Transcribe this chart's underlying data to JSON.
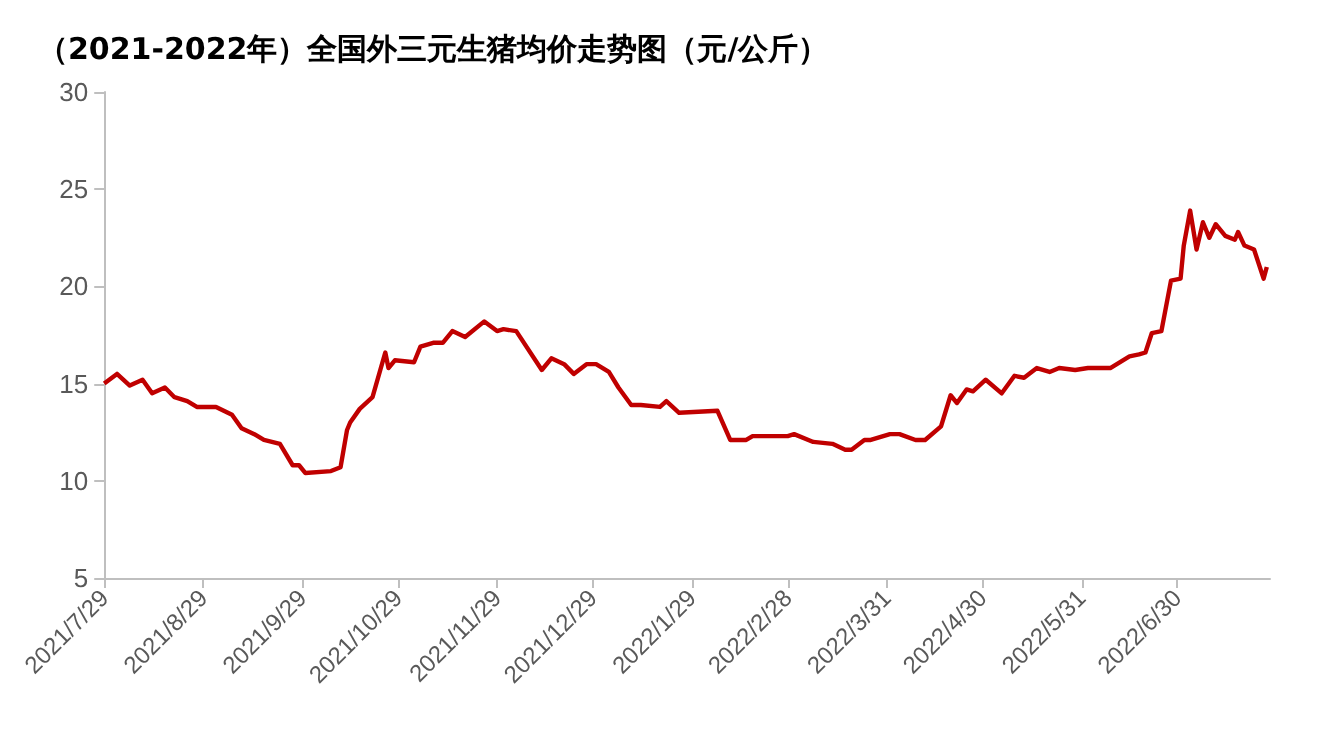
{
  "chart_data": {
    "type": "line",
    "title": "（2021-2022年）全国外三元生猪均价走势图（元/公斤）",
    "x": [
      "2021-07-29",
      "2021-08-02",
      "2021-08-06",
      "2021-08-10",
      "2021-08-13",
      "2021-08-17",
      "2021-08-20",
      "2021-08-24",
      "2021-08-27",
      "2021-09-02",
      "2021-09-07",
      "2021-09-10",
      "2021-09-14",
      "2021-09-17",
      "2021-09-22",
      "2021-09-26",
      "2021-09-28",
      "2021-09-30",
      "2021-10-08",
      "2021-10-11",
      "2021-10-13",
      "2021-10-14",
      "2021-10-17",
      "2021-10-21",
      "2021-10-25",
      "2021-10-26",
      "2021-10-28",
      "2021-11-03",
      "2021-11-05",
      "2021-11-09",
      "2021-11-12",
      "2021-11-15",
      "2021-11-19",
      "2021-11-25",
      "2021-11-29",
      "2021-12-01",
      "2021-12-05",
      "2021-12-13",
      "2021-12-16",
      "2021-12-20",
      "2021-12-23",
      "2021-12-27",
      "2021-12-30",
      "2022-01-03",
      "2022-01-06",
      "2022-01-10",
      "2022-01-13",
      "2022-01-19",
      "2022-01-21",
      "2022-01-25",
      "2022-02-06",
      "2022-02-10",
      "2022-02-15",
      "2022-02-17",
      "2022-02-28",
      "2022-03-02",
      "2022-03-08",
      "2022-03-14",
      "2022-03-18",
      "2022-03-20",
      "2022-03-24",
      "2022-03-26",
      "2022-04-01",
      "2022-04-04",
      "2022-04-09",
      "2022-04-12",
      "2022-04-17",
      "2022-04-20",
      "2022-04-22",
      "2022-04-25",
      "2022-04-27",
      "2022-05-01",
      "2022-05-06",
      "2022-05-10",
      "2022-05-13",
      "2022-05-17",
      "2022-05-21",
      "2022-05-24",
      "2022-05-29",
      "2022-06-02",
      "2022-06-09",
      "2022-06-15",
      "2022-06-18",
      "2022-06-20",
      "2022-06-22",
      "2022-06-25",
      "2022-06-28",
      "2022-07-01",
      "2022-07-02",
      "2022-07-04",
      "2022-07-06",
      "2022-07-08",
      "2022-07-10",
      "2022-07-12",
      "2022-07-15",
      "2022-07-18",
      "2022-07-19",
      "2022-07-21",
      "2022-07-24",
      "2022-07-27",
      "2022-07-28"
    ],
    "series": [
      {
        "color": "#c00000",
        "values": [
          15.0,
          15.5,
          14.9,
          15.2,
          14.5,
          14.8,
          14.3,
          14.1,
          13.8,
          13.8,
          13.4,
          12.7,
          12.4,
          12.1,
          11.9,
          10.8,
          10.8,
          10.4,
          10.5,
          10.7,
          12.6,
          13.0,
          13.7,
          14.3,
          16.6,
          15.8,
          16.2,
          16.1,
          16.9,
          17.1,
          17.1,
          17.7,
          17.4,
          18.2,
          17.7,
          17.8,
          17.7,
          15.7,
          16.3,
          16.0,
          15.5,
          16.0,
          16.0,
          15.6,
          14.8,
          13.9,
          13.9,
          13.8,
          14.1,
          13.5,
          13.6,
          12.1,
          12.1,
          12.3,
          12.3,
          12.4,
          12.0,
          11.9,
          11.6,
          11.6,
          12.1,
          12.1,
          12.4,
          12.4,
          12.1,
          12.1,
          12.8,
          14.4,
          14.0,
          14.7,
          14.6,
          15.2,
          14.5,
          15.4,
          15.3,
          15.8,
          15.6,
          15.8,
          15.7,
          15.8,
          15.8,
          16.4,
          16.5,
          16.6,
          17.6,
          17.7,
          20.3,
          20.4,
          22.1,
          23.9,
          21.9,
          23.3,
          22.5,
          23.2,
          22.6,
          22.4,
          22.8,
          22.1,
          21.9,
          20.4,
          21.0
        ]
      }
    ],
    "xlim": [
      "2021-07-29",
      "2022-07-29"
    ],
    "xticks": [
      {
        "value": "2021-07-29",
        "label": "2021/7/29"
      },
      {
        "value": "2021-08-29",
        "label": "2021/8/29"
      },
      {
        "value": "2021-09-29",
        "label": "2021/9/29"
      },
      {
        "value": "2021-10-29",
        "label": "2021/10/29"
      },
      {
        "value": "2021-11-29",
        "label": "2021/11/29"
      },
      {
        "value": "2021-12-29",
        "label": "2021/12/29"
      },
      {
        "value": "2022-01-29",
        "label": "2022/1/29"
      },
      {
        "value": "2022-02-28",
        "label": "2022/2/28"
      },
      {
        "value": "2022-03-31",
        "label": "2022/3/31"
      },
      {
        "value": "2022-04-30",
        "label": "2022/4/30"
      },
      {
        "value": "2022-05-31",
        "label": "2022/5/31"
      },
      {
        "value": "2022-06-30",
        "label": "2022/6/30"
      }
    ],
    "ylim": [
      5,
      30
    ],
    "yticks": [
      5,
      10,
      15,
      20,
      25,
      30
    ],
    "grid": false,
    "marker": "none",
    "line_style": "solid"
  }
}
